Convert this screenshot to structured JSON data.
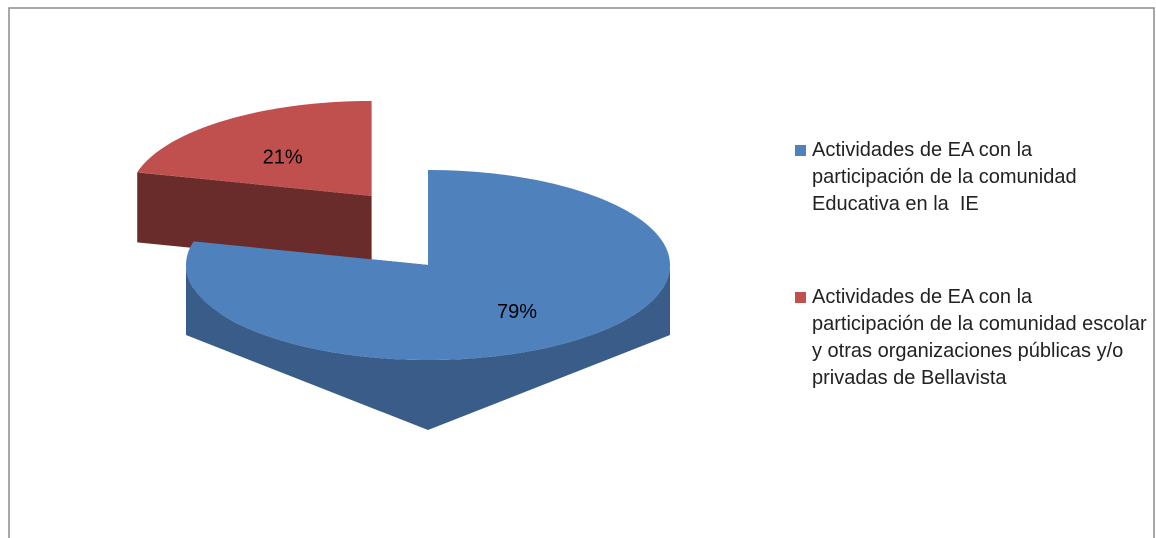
{
  "chart_data": {
    "type": "pie",
    "categories": [
      "Actividades de EA con la participación de la comunidad Educativa en la  IE",
      "Actividades de EA con la participación de la comunidad escolar y otras organizaciones públicas y/o privadas de Bellavista"
    ],
    "values": [
      79,
      21
    ],
    "value_labels": [
      "79%",
      "21%"
    ],
    "colors": [
      "#4f81bd",
      "#c0504d"
    ],
    "legend": "right"
  }
}
